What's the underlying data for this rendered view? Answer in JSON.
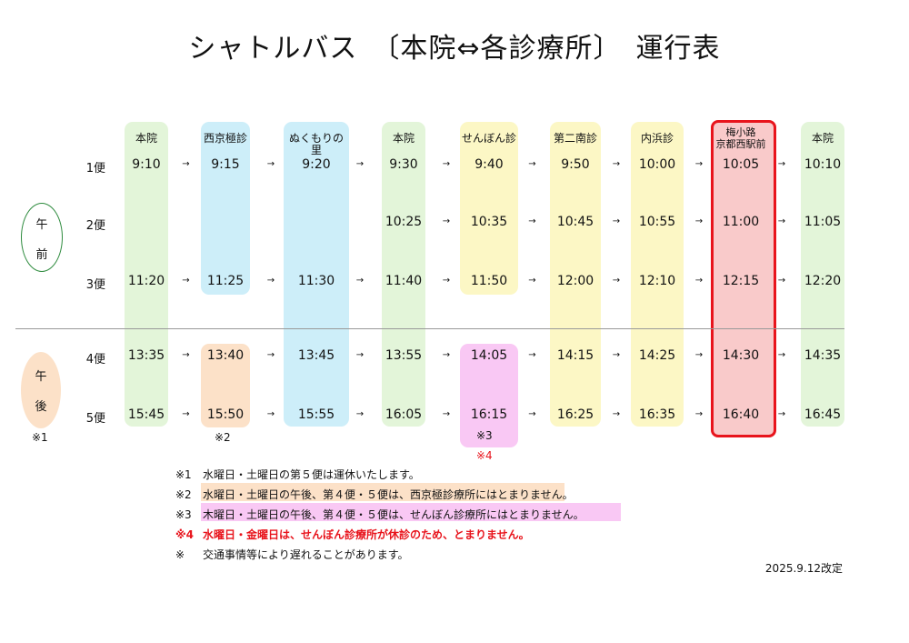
{
  "title": "シャトルバス　〔本院⇔各診療所〕　運行表",
  "stops": [
    "本院",
    "西京極診",
    "ぬくもりの里",
    "本院",
    "せんぼん診",
    "第二南診",
    "内浜診",
    "梅小路\n京都西駅前",
    "本院"
  ],
  "trips": [
    {
      "label": "1便",
      "times": [
        "9:10",
        "9:15",
        "9:20",
        "9:30",
        "9:40",
        "9:50",
        "10:00",
        "10:05",
        "10:10"
      ]
    },
    {
      "label": "2便",
      "times": [
        "",
        "",
        "",
        "10:25",
        "10:35",
        "10:45",
        "10:55",
        "11:00",
        "11:05"
      ]
    },
    {
      "label": "3便",
      "times": [
        "11:20",
        "11:25",
        "11:30",
        "11:40",
        "11:50",
        "12:00",
        "12:10",
        "12:15",
        "12:20"
      ]
    },
    {
      "label": "4便",
      "times": [
        "13:35",
        "13:40",
        "13:45",
        "13:55",
        "14:05",
        "14:15",
        "14:25",
        "14:30",
        "14:35"
      ]
    },
    {
      "label": "5便",
      "times": [
        "15:45",
        "15:50",
        "15:55",
        "16:05",
        "16:15",
        "16:25",
        "16:35",
        "16:40",
        "16:45"
      ]
    }
  ],
  "arrow": "→",
  "periods": {
    "am": [
      "午",
      "前"
    ],
    "pm": [
      "午",
      "後"
    ]
  },
  "footnote_marks": {
    "pm": "※1",
    "col2": "※2",
    "col5a": "※3",
    "col5b": "※4"
  },
  "notes": [
    {
      "mark": "※1",
      "text": "水曜日・土曜日の第５便は運休いたします。"
    },
    {
      "mark": "※2",
      "text": "水曜日・土曜日の午後、第４便・５便は、西京極診療所にはとまりません。"
    },
    {
      "mark": "※3",
      "text": "木曜日・土曜日の午後、第４便・５便は、せんぼん診療所にはとまりません。"
    },
    {
      "mark": "※4",
      "text": "水曜日・金曜日は、せんぼん診療所が休診のため、とまりません。"
    },
    {
      "mark": "※",
      "text": "交通事情等により遅れることがあります。"
    }
  ],
  "revision": "2025.9.12改定",
  "colors": {
    "green": "#e3f5d9",
    "blue": "#cdeef9",
    "yellow": "#fcf7c5",
    "pink": "#f9c8f4",
    "orange": "#fce1c8",
    "red_fill": "#f9caca",
    "red_border": "#e8141c",
    "red_text": "#e8141c"
  }
}
